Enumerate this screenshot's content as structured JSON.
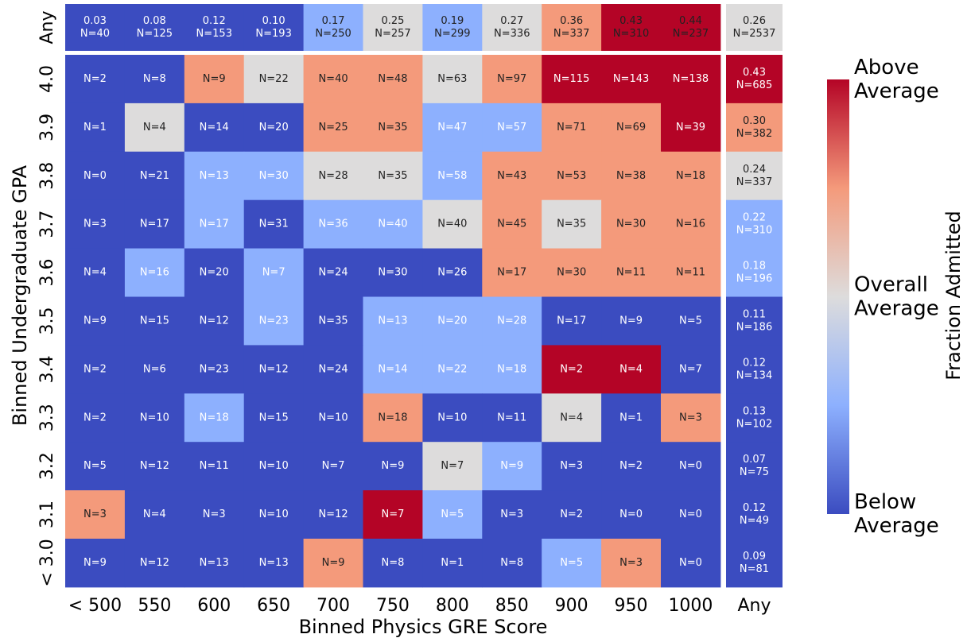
{
  "chart_data": {
    "type": "heatmap",
    "xlabel": "Binned Physics GRE Score",
    "ylabel": "Binned Undergraduate GPA",
    "x_categories": [
      "< 500",
      "550",
      "600",
      "650",
      "700",
      "750",
      "800",
      "850",
      "900",
      "950",
      "1000"
    ],
    "y_categories": [
      "4.0",
      "3.9",
      "3.8",
      "3.7",
      "3.6",
      "3.5",
      "3.4",
      "3.3",
      "3.2",
      "3.1",
      "< 3.0"
    ],
    "any_label": "Any",
    "palette": [
      "#3b4cc0",
      "#8db0fe",
      "#dddcdc",
      "#f49a7b",
      "#b40426"
    ],
    "counts": [
      [
        2,
        8,
        9,
        22,
        40,
        48,
        63,
        97,
        115,
        143,
        138
      ],
      [
        1,
        4,
        14,
        20,
        25,
        35,
        47,
        57,
        71,
        69,
        39
      ],
      [
        0,
        21,
        13,
        30,
        28,
        35,
        58,
        43,
        53,
        38,
        18
      ],
      [
        3,
        17,
        17,
        31,
        36,
        40,
        40,
        45,
        35,
        30,
        16
      ],
      [
        4,
        16,
        20,
        7,
        24,
        30,
        26,
        17,
        30,
        11,
        11
      ],
      [
        9,
        15,
        12,
        23,
        35,
        13,
        20,
        28,
        17,
        9,
        5
      ],
      [
        2,
        6,
        23,
        12,
        24,
        14,
        22,
        18,
        2,
        4,
        7
      ],
      [
        2,
        10,
        18,
        15,
        10,
        18,
        10,
        11,
        4,
        1,
        3
      ],
      [
        5,
        12,
        11,
        10,
        7,
        9,
        7,
        9,
        3,
        2,
        0
      ],
      [
        3,
        4,
        3,
        10,
        12,
        7,
        5,
        3,
        2,
        0,
        0
      ],
      [
        9,
        12,
        13,
        13,
        9,
        8,
        1,
        8,
        5,
        3,
        0
      ]
    ],
    "count_labels": [
      [
        "N=2",
        "N=8",
        "N=9",
        "N=22",
        "N=40",
        "N=48",
        "N=63",
        "N=97",
        "N=115",
        "N=143",
        "N=138"
      ],
      [
        "N=1",
        "N=4",
        "N=14",
        "N=20",
        "N=25",
        "N=35",
        "N=47",
        "N=57",
        "N=71",
        "N=69",
        "N=39"
      ],
      [
        "N=0",
        "N=21",
        "N=13",
        "N=30",
        "N=28",
        "N=35",
        "N=58",
        "N=43",
        "N=53",
        "N=38",
        "N=18"
      ],
      [
        "N=3",
        "N=17",
        "N=17",
        "N=31",
        "N=36",
        "N=40",
        "N=40",
        "N=45",
        "N=35",
        "N=30",
        "N=16"
      ],
      [
        "N=4",
        "N=16",
        "N=20",
        "N=7",
        "N=24",
        "N=30",
        "N=26",
        "N=17",
        "N=30",
        "N=11",
        "N=11"
      ],
      [
        "N=9",
        "N=15",
        "N=12",
        "N=23",
        "N=35",
        "N=13",
        "N=20",
        "N=28",
        "N=17",
        "N=9",
        "N=5"
      ],
      [
        "N=2",
        "N=6",
        "N=23",
        "N=12",
        "N=24",
        "N=14",
        "N=22",
        "N=18",
        "N=2",
        "N=4",
        "N=7"
      ],
      [
        "N=2",
        "N=10",
        "N=18",
        "N=15",
        "N=10",
        "N=18",
        "N=10",
        "N=11",
        "N=4",
        "N=1",
        "N=3"
      ],
      [
        "N=5",
        "N=12",
        "N=11",
        "N=10",
        "N=7",
        "N=9",
        "N=7",
        "N=9",
        "N=3",
        "N=2",
        "N=0"
      ],
      [
        "N=3",
        "N=4",
        "N=3",
        "N=10",
        "N=12",
        "N=7",
        "N=5",
        "N=3",
        "N=2",
        "N=0",
        "N=0"
      ],
      [
        "N=9",
        "N=12",
        "N=13",
        "N=13",
        "N=9",
        "N=8",
        "N=1",
        "N=8",
        "N=5",
        "N=3",
        "N=0"
      ]
    ],
    "levels": [
      [
        0,
        0,
        3,
        2,
        3,
        3,
        2,
        3,
        4,
        4,
        4
      ],
      [
        0,
        2,
        0,
        0,
        3,
        3,
        1,
        1,
        3,
        3,
        4
      ],
      [
        0,
        0,
        1,
        1,
        2,
        2,
        1,
        3,
        3,
        3,
        3
      ],
      [
        0,
        0,
        1,
        0,
        1,
        1,
        2,
        3,
        2,
        3,
        3
      ],
      [
        0,
        1,
        0,
        1,
        0,
        0,
        0,
        3,
        3,
        3,
        3
      ],
      [
        0,
        0,
        0,
        1,
        0,
        1,
        1,
        1,
        0,
        0,
        0
      ],
      [
        0,
        0,
        0,
        0,
        0,
        1,
        1,
        1,
        4,
        4,
        0
      ],
      [
        0,
        0,
        1,
        0,
        0,
        3,
        0,
        0,
        2,
        0,
        3
      ],
      [
        0,
        0,
        0,
        0,
        0,
        0,
        2,
        1,
        0,
        0,
        0
      ],
      [
        3,
        0,
        0,
        0,
        0,
        4,
        1,
        0,
        0,
        0,
        0
      ],
      [
        0,
        0,
        0,
        0,
        3,
        0,
        0,
        0,
        1,
        3,
        0
      ]
    ],
    "marginal_x": {
      "fractions": [
        0.03,
        0.08,
        0.12,
        0.1,
        0.17,
        0.25,
        0.19,
        0.27,
        0.36,
        0.43,
        0.44
      ],
      "fraction_labels": [
        "0.03",
        "0.08",
        "0.12",
        "0.10",
        "0.17",
        "0.25",
        "0.19",
        "0.27",
        "0.36",
        "0.43",
        "0.44"
      ],
      "counts": [
        40,
        125,
        153,
        193,
        250,
        257,
        299,
        336,
        337,
        310,
        237
      ],
      "count_labels": [
        "N=40",
        "N=125",
        "N=153",
        "N=193",
        "N=250",
        "N=257",
        "N=299",
        "N=336",
        "N=337",
        "N=310",
        "N=237"
      ],
      "levels": [
        0,
        0,
        0,
        0,
        1,
        2,
        1,
        2,
        3,
        4,
        4
      ]
    },
    "marginal_y": {
      "fractions": [
        0.43,
        0.3,
        0.24,
        0.22,
        0.18,
        0.11,
        0.12,
        0.13,
        0.07,
        0.12,
        0.09
      ],
      "fraction_labels": [
        "0.43",
        "0.30",
        "0.24",
        "0.22",
        "0.18",
        "0.11",
        "0.12",
        "0.13",
        "0.07",
        "0.12",
        "0.09"
      ],
      "counts": [
        685,
        382,
        337,
        310,
        196,
        186,
        134,
        102,
        75,
        49,
        81
      ],
      "count_labels": [
        "N=685",
        "N=382",
        "N=337",
        "N=310",
        "N=196",
        "N=186",
        "N=134",
        "N=102",
        "N=75",
        "N=49",
        "N=81"
      ],
      "levels": [
        4,
        3,
        2,
        1,
        1,
        0,
        0,
        0,
        0,
        0,
        0
      ]
    },
    "total": {
      "fraction": 0.26,
      "fraction_label": "0.26",
      "count": 2537,
      "count_label": "N=2537",
      "level": 2
    },
    "colorbar": {
      "title": "Fraction Admitted",
      "labels": [
        [
          "Above",
          "Average"
        ],
        [
          "Overall",
          "Average"
        ],
        [
          "Below",
          "Average"
        ]
      ]
    }
  }
}
